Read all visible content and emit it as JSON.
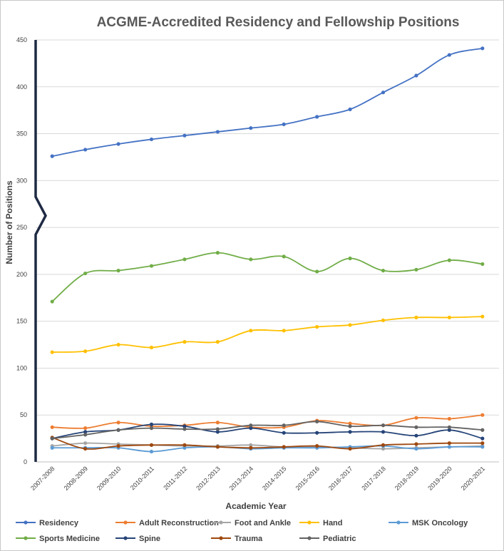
{
  "chart_data": {
    "type": "line",
    "title": "ACGME-Accredited Residency and Fellowship Positions",
    "xlabel": "Academic Year",
    "ylabel": "Number of Positions",
    "y_ticks": [
      0,
      50,
      100,
      150,
      200,
      250,
      300,
      350,
      400,
      450
    ],
    "y_axis_break": [
      250,
      275
    ],
    "grid": "horizontal",
    "legend_position": "bottom",
    "categories": [
      "2007-2008",
      "2008-2009",
      "2009-2010",
      "2010-2011",
      "2011-2012",
      "2012-2013",
      "2013-2014",
      "2014-2015",
      "2015-2016",
      "2016-2017",
      "2017-2018",
      "2018-2019",
      "2019-2020",
      "2020-2021"
    ],
    "series": [
      {
        "name": "Residency",
        "color": "#4472c4",
        "values": [
          326,
          333,
          339,
          344,
          348,
          352,
          356,
          360,
          368,
          376,
          394,
          412,
          434,
          441
        ]
      },
      {
        "name": "Adult Reconstruction",
        "color": "#ed7d31",
        "values": [
          37,
          36,
          42,
          38,
          39,
          42,
          37,
          37,
          44,
          41,
          39,
          47,
          46,
          50
        ]
      },
      {
        "name": "Foot and Ankle",
        "color": "#a5a5a5",
        "values": [
          17,
          20,
          19,
          18,
          17,
          17,
          18,
          16,
          16,
          15,
          14,
          15,
          16,
          17
        ]
      },
      {
        "name": "Hand",
        "color": "#ffc000",
        "values": [
          117,
          118,
          125,
          122,
          128,
          128,
          140,
          140,
          144,
          146,
          151,
          154,
          154,
          155
        ]
      },
      {
        "name": "MSK Oncology",
        "color": "#5b9bd5",
        "values": [
          15,
          15,
          15,
          11,
          15,
          16,
          14,
          15,
          15,
          16,
          17,
          14,
          16,
          16
        ]
      },
      {
        "name": "Sports Medicine",
        "color": "#70ad47",
        "values": [
          171,
          201,
          204,
          209,
          216,
          223,
          216,
          219,
          203,
          217,
          204,
          205,
          215,
          211
        ]
      },
      {
        "name": "Spine",
        "color": "#264478",
        "values": [
          25,
          32,
          34,
          40,
          38,
          32,
          36,
          31,
          31,
          32,
          32,
          28,
          34,
          25
        ]
      },
      {
        "name": "Trauma",
        "color": "#9e480e",
        "values": [
          26,
          14,
          17,
          18,
          18,
          16,
          15,
          16,
          17,
          14,
          18,
          19,
          20,
          20
        ]
      },
      {
        "name": "Pediatric",
        "color": "#636363",
        "values": [
          25,
          29,
          34,
          36,
          35,
          35,
          39,
          39,
          43,
          38,
          39,
          37,
          37,
          34
        ]
      }
    ]
  }
}
